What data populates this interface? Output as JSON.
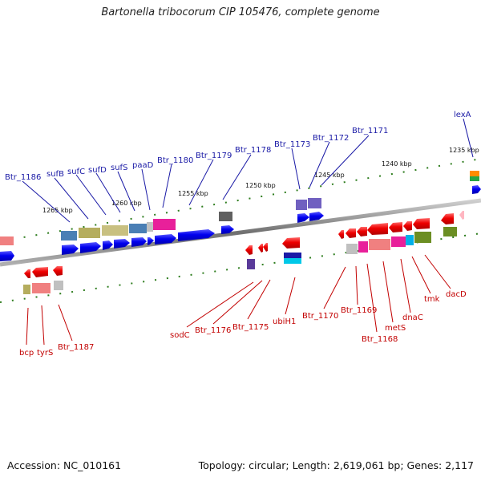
{
  "title": "Bartonella tribocorum CIP 105476, complete genome",
  "footer": {
    "accession": "Accession: NC_010161",
    "summary": "Topology: circular; Length: 2,619,061 bp; Genes: 2,117"
  },
  "ticks": [
    "1265 kbp",
    "1260 kbp",
    "1255 kbp",
    "1250 kbp",
    "1245 kbp",
    "1240 kbp",
    "1235 kbp"
  ],
  "genes_forward": [
    "Btr_1186",
    "sufB",
    "sufC",
    "sufD",
    "sufS",
    "paaD",
    "Btr_1180",
    "Btr_1179",
    "Btr_1178",
    "Btr_1173",
    "Btr_1172",
    "Btr_1171",
    "lexA"
  ],
  "genes_reverse": [
    "bcp",
    "tyrS",
    "Btr_1187",
    "sodC",
    "Btr_1176",
    "Btr_1175",
    "ubiH1",
    "Btr_1170",
    "Btr_1169",
    "Btr_1168",
    "metS",
    "dnaC",
    "tmk",
    "dacD"
  ],
  "colors": {
    "forward_label": "#1a1aa6",
    "reverse_label": "#c20000",
    "forward_gene": "#0000ee",
    "reverse_gene": "#ee0000",
    "backbone": "#8a8a8a",
    "tick": "#2e7d1e"
  }
}
